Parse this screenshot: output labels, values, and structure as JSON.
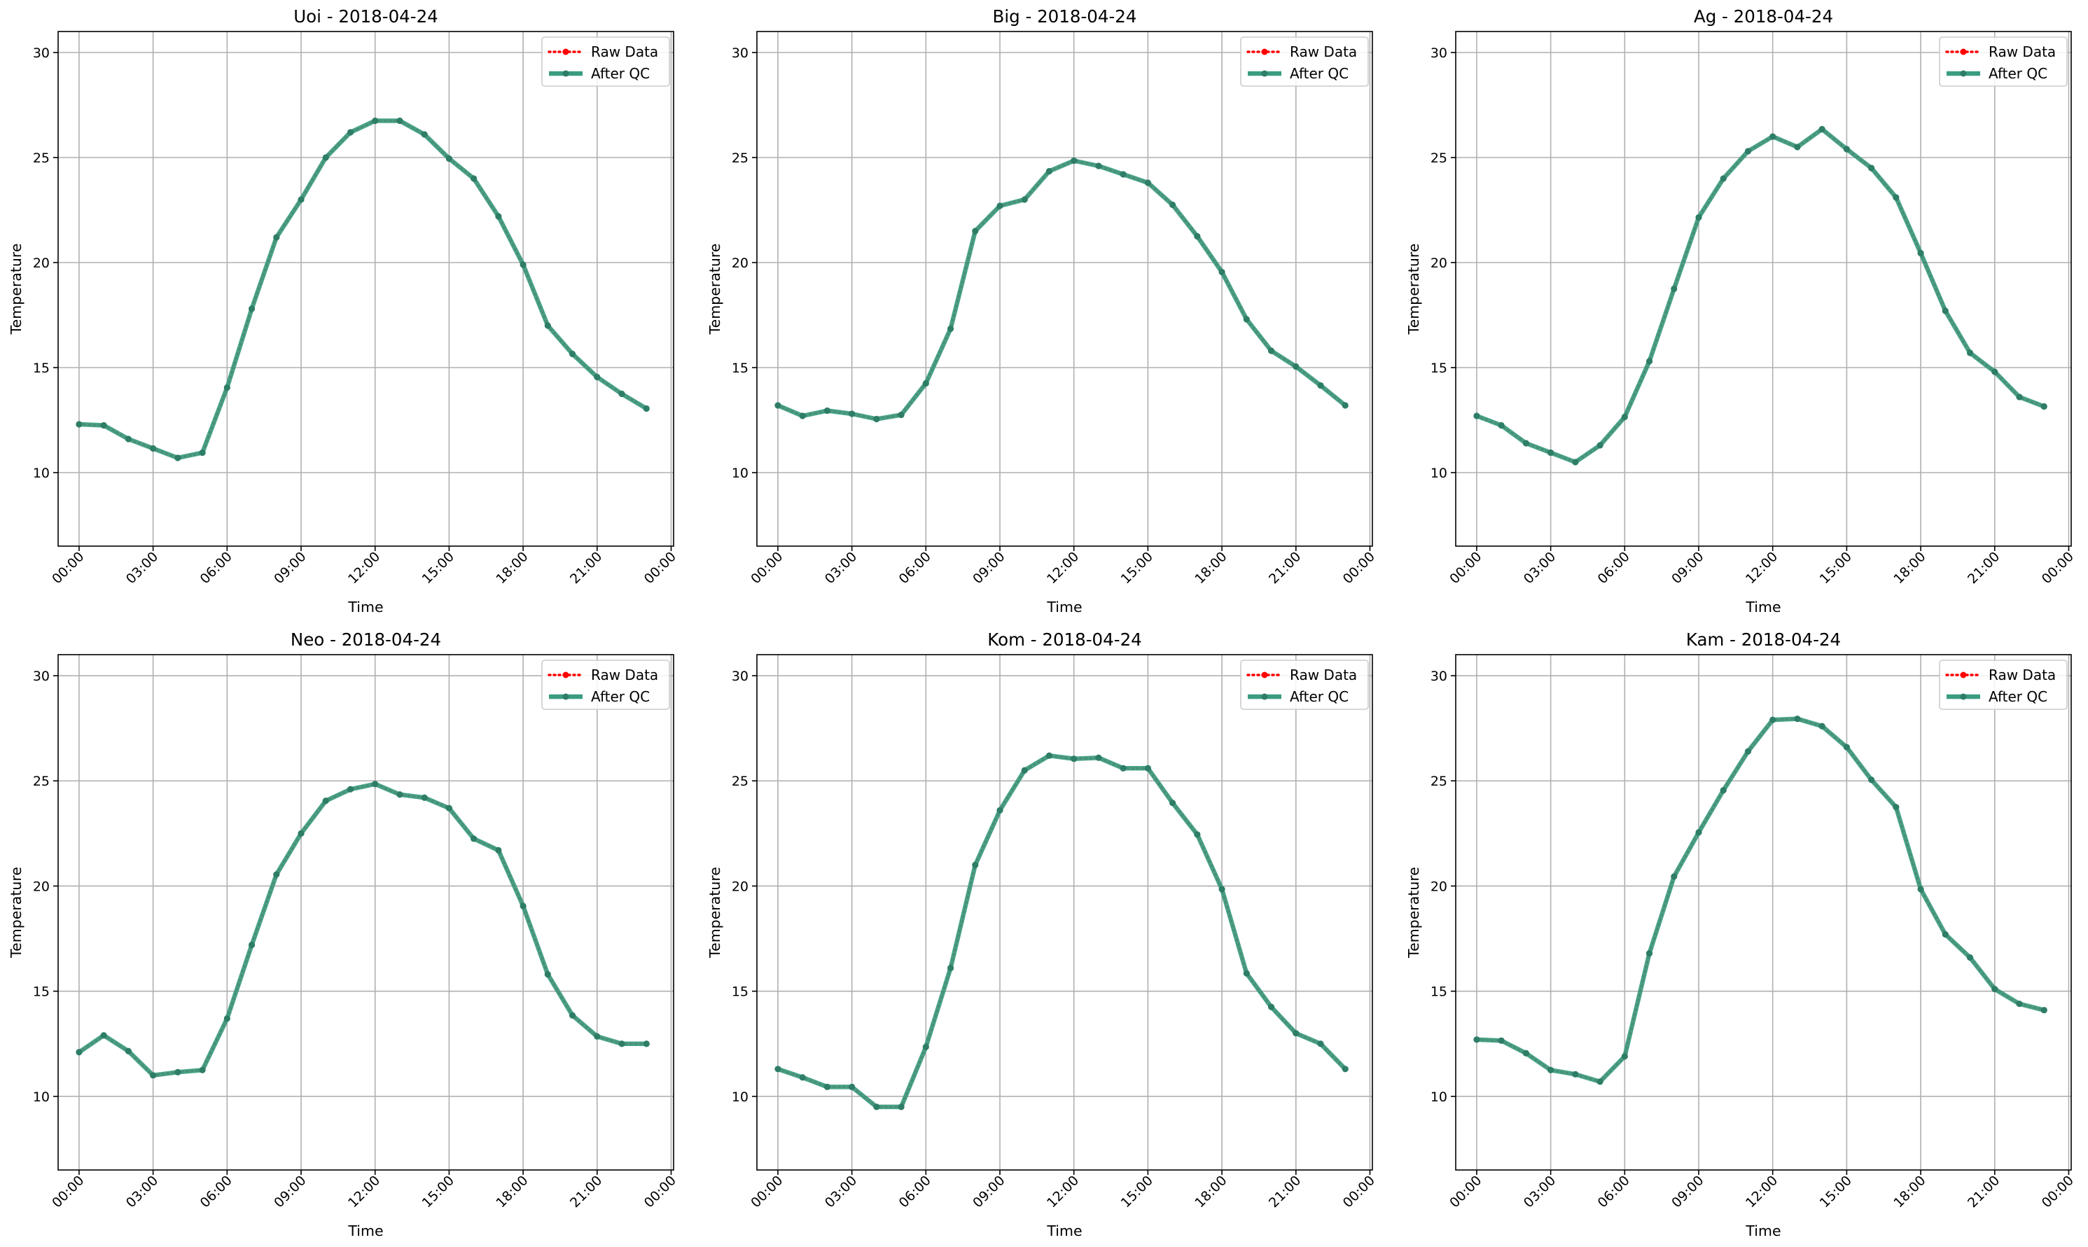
{
  "chart_data": [
    {
      "type": "line",
      "title": "Uoi - 2018-04-24",
      "xlabel": "Time",
      "ylabel": "Temperature",
      "ylim": [
        6.5,
        31
      ],
      "xlim": [
        -0.85,
        24.1
      ],
      "yticks": [
        10,
        15,
        20,
        25,
        30
      ],
      "xticks": [
        [
          "00:00",
          0
        ],
        [
          "03:00",
          3
        ],
        [
          "06:00",
          6
        ],
        [
          "09:00",
          9
        ],
        [
          "12:00",
          12
        ],
        [
          "15:00",
          15
        ],
        [
          "18:00",
          18
        ],
        [
          "21:00",
          21
        ],
        [
          "00:00",
          24
        ]
      ],
      "grid": true,
      "legend_position": "top-right",
      "x": [
        0,
        1,
        2,
        3,
        4,
        5,
        6,
        7,
        8,
        9,
        10,
        11,
        12,
        13,
        14,
        15,
        16,
        17,
        18,
        19,
        20,
        21,
        22,
        23
      ],
      "series": [
        {
          "name": "Raw Data",
          "values": [
            12.3,
            12.25,
            11.6,
            11.15,
            10.7,
            10.95,
            14.05,
            17.8,
            21.2,
            23.0,
            25.0,
            26.2,
            26.75,
            26.75,
            26.1,
            24.95,
            24.0,
            22.2,
            19.9,
            17.0,
            15.65,
            14.55,
            13.75,
            13.05
          ]
        },
        {
          "name": "After QC",
          "values": [
            12.3,
            12.25,
            11.6,
            11.15,
            10.7,
            10.95,
            14.05,
            17.8,
            21.2,
            23.0,
            25.0,
            26.2,
            26.75,
            26.75,
            26.1,
            24.95,
            24.0,
            22.2,
            19.9,
            17.0,
            15.65,
            14.55,
            13.75,
            13.05
          ]
        }
      ]
    },
    {
      "type": "line",
      "title": "Big - 2018-04-24",
      "xlabel": "Time",
      "ylabel": "Temperature",
      "ylim": [
        6.5,
        31
      ],
      "xlim": [
        -0.85,
        24.1
      ],
      "yticks": [
        10,
        15,
        20,
        25,
        30
      ],
      "xticks": [
        [
          "00:00",
          0
        ],
        [
          "03:00",
          3
        ],
        [
          "06:00",
          6
        ],
        [
          "09:00",
          9
        ],
        [
          "12:00",
          12
        ],
        [
          "15:00",
          15
        ],
        [
          "18:00",
          18
        ],
        [
          "21:00",
          21
        ],
        [
          "00:00",
          24
        ]
      ],
      "grid": true,
      "legend_position": "top-right",
      "x": [
        0,
        1,
        2,
        3,
        4,
        5,
        6,
        7,
        8,
        9,
        10,
        11,
        12,
        13,
        14,
        15,
        16,
        17,
        18,
        19,
        20,
        21,
        22,
        23
      ],
      "series": [
        {
          "name": "Raw Data",
          "values": [
            13.2,
            12.7,
            12.95,
            12.8,
            12.55,
            12.75,
            14.25,
            16.85,
            21.5,
            22.7,
            23.0,
            24.35,
            24.85,
            24.6,
            24.2,
            23.8,
            22.75,
            21.25,
            19.55,
            17.3,
            15.8,
            15.05,
            14.15,
            13.2
          ]
        },
        {
          "name": "After QC",
          "values": [
            13.2,
            12.7,
            12.95,
            12.8,
            12.55,
            12.75,
            14.25,
            16.85,
            21.5,
            22.7,
            23.0,
            24.35,
            24.85,
            24.6,
            24.2,
            23.8,
            22.75,
            21.25,
            19.55,
            17.3,
            15.8,
            15.05,
            14.15,
            13.2
          ]
        }
      ]
    },
    {
      "type": "line",
      "title": "Ag - 2018-04-24",
      "xlabel": "Time",
      "ylabel": "Temperature",
      "ylim": [
        6.5,
        31
      ],
      "xlim": [
        -0.85,
        24.1
      ],
      "yticks": [
        10,
        15,
        20,
        25,
        30
      ],
      "xticks": [
        [
          "00:00",
          0
        ],
        [
          "03:00",
          3
        ],
        [
          "06:00",
          6
        ],
        [
          "09:00",
          9
        ],
        [
          "12:00",
          12
        ],
        [
          "15:00",
          15
        ],
        [
          "18:00",
          18
        ],
        [
          "21:00",
          21
        ],
        [
          "00:00",
          24
        ]
      ],
      "grid": true,
      "legend_position": "top-right",
      "x": [
        0,
        1,
        2,
        3,
        4,
        5,
        6,
        7,
        8,
        9,
        10,
        11,
        12,
        13,
        14,
        15,
        16,
        17,
        18,
        19,
        20,
        21,
        22,
        23
      ],
      "series": [
        {
          "name": "Raw Data",
          "values": [
            12.7,
            12.25,
            11.4,
            10.95,
            10.5,
            11.3,
            12.65,
            15.3,
            18.75,
            22.15,
            24.0,
            25.3,
            26.0,
            25.5,
            26.35,
            25.4,
            24.5,
            23.1,
            20.45,
            17.7,
            15.7,
            14.8,
            13.6,
            13.15
          ]
        },
        {
          "name": "After QC",
          "values": [
            12.7,
            12.25,
            11.4,
            10.95,
            10.5,
            11.3,
            12.65,
            15.3,
            18.75,
            22.15,
            24.0,
            25.3,
            26.0,
            25.5,
            26.35,
            25.4,
            24.5,
            23.1,
            20.45,
            17.7,
            15.7,
            14.8,
            13.6,
            13.15
          ]
        }
      ]
    },
    {
      "type": "line",
      "title": "Neo - 2018-04-24",
      "xlabel": "Time",
      "ylabel": "Temperature",
      "ylim": [
        6.5,
        31
      ],
      "xlim": [
        -0.85,
        24.1
      ],
      "yticks": [
        10,
        15,
        20,
        25,
        30
      ],
      "xticks": [
        [
          "00:00",
          0
        ],
        [
          "03:00",
          3
        ],
        [
          "06:00",
          6
        ],
        [
          "09:00",
          9
        ],
        [
          "12:00",
          12
        ],
        [
          "15:00",
          15
        ],
        [
          "18:00",
          18
        ],
        [
          "21:00",
          21
        ],
        [
          "00:00",
          24
        ]
      ],
      "grid": true,
      "legend_position": "top-right",
      "x": [
        0,
        1,
        2,
        3,
        4,
        5,
        6,
        7,
        8,
        9,
        10,
        11,
        12,
        13,
        14,
        15,
        16,
        17,
        18,
        19,
        20,
        21,
        22,
        23
      ],
      "series": [
        {
          "name": "Raw Data",
          "values": [
            12.1,
            12.9,
            12.15,
            11.0,
            11.15,
            11.25,
            13.7,
            17.2,
            20.55,
            22.5,
            24.05,
            24.6,
            24.85,
            24.35,
            24.2,
            23.7,
            22.25,
            21.7,
            19.05,
            15.8,
            13.85,
            12.85,
            12.5,
            12.5
          ]
        },
        {
          "name": "After QC",
          "values": [
            12.1,
            12.9,
            12.15,
            11.0,
            11.15,
            11.25,
            13.7,
            17.2,
            20.55,
            22.5,
            24.05,
            24.6,
            24.85,
            24.35,
            24.2,
            23.7,
            22.25,
            21.7,
            19.05,
            15.8,
            13.85,
            12.85,
            12.5,
            12.5
          ]
        }
      ]
    },
    {
      "type": "line",
      "title": "Kom - 2018-04-24",
      "xlabel": "Time",
      "ylabel": "Temperature",
      "ylim": [
        6.5,
        31
      ],
      "xlim": [
        -0.85,
        24.1
      ],
      "yticks": [
        10,
        15,
        20,
        25,
        30
      ],
      "xticks": [
        [
          "00:00",
          0
        ],
        [
          "03:00",
          3
        ],
        [
          "06:00",
          6
        ],
        [
          "09:00",
          9
        ],
        [
          "12:00",
          12
        ],
        [
          "15:00",
          15
        ],
        [
          "18:00",
          18
        ],
        [
          "21:00",
          21
        ],
        [
          "00:00",
          24
        ]
      ],
      "grid": true,
      "legend_position": "top-right",
      "x": [
        0,
        1,
        2,
        3,
        4,
        5,
        6,
        7,
        8,
        9,
        10,
        11,
        12,
        13,
        14,
        15,
        16,
        17,
        18,
        19,
        20,
        21,
        22,
        23
      ],
      "series": [
        {
          "name": "Raw Data",
          "values": [
            11.3,
            10.9,
            10.45,
            10.45,
            9.5,
            9.5,
            12.35,
            16.1,
            21.0,
            23.6,
            25.5,
            26.2,
            26.05,
            26.1,
            25.6,
            25.6,
            23.95,
            22.45,
            19.85,
            15.85,
            14.25,
            13.0,
            12.5,
            11.3
          ]
        },
        {
          "name": "After QC",
          "values": [
            11.3,
            10.9,
            10.45,
            10.45,
            9.5,
            9.5,
            12.35,
            16.1,
            21.0,
            23.6,
            25.5,
            26.2,
            26.05,
            26.1,
            25.6,
            25.6,
            23.95,
            22.45,
            19.85,
            15.85,
            14.25,
            13.0,
            12.5,
            11.3
          ]
        }
      ]
    },
    {
      "type": "line",
      "title": "Kam - 2018-04-24",
      "xlabel": "Time",
      "ylabel": "Temperature",
      "ylim": [
        6.5,
        31
      ],
      "xlim": [
        -0.85,
        24.1
      ],
      "yticks": [
        10,
        15,
        20,
        25,
        30
      ],
      "xticks": [
        [
          "00:00",
          0
        ],
        [
          "03:00",
          3
        ],
        [
          "06:00",
          6
        ],
        [
          "09:00",
          9
        ],
        [
          "12:00",
          12
        ],
        [
          "15:00",
          15
        ],
        [
          "18:00",
          18
        ],
        [
          "21:00",
          21
        ],
        [
          "00:00",
          24
        ]
      ],
      "grid": true,
      "legend_position": "top-right",
      "x": [
        0,
        1,
        2,
        3,
        4,
        5,
        6,
        7,
        8,
        9,
        10,
        11,
        12,
        13,
        14,
        15,
        16,
        17,
        18,
        19,
        20,
        21,
        22,
        23
      ],
      "series": [
        {
          "name": "Raw Data",
          "values": [
            12.7,
            12.65,
            12.05,
            11.25,
            11.05,
            10.7,
            11.9,
            16.8,
            20.45,
            22.55,
            24.55,
            26.4,
            27.9,
            27.95,
            27.6,
            26.6,
            25.05,
            23.75,
            19.85,
            17.7,
            16.6,
            15.1,
            14.4,
            14.1
          ]
        },
        {
          "name": "After QC",
          "values": [
            12.7,
            12.65,
            12.05,
            11.25,
            11.05,
            10.7,
            11.9,
            16.8,
            20.45,
            22.55,
            24.55,
            26.4,
            27.9,
            27.95,
            27.6,
            26.6,
            25.05,
            23.75,
            19.85,
            17.7,
            16.6,
            15.1,
            14.4,
            14.1
          ]
        }
      ]
    }
  ],
  "colors": {
    "raw": "#ff0000",
    "qc_line": "#3a9c80",
    "qc_marker": "#2e7d67",
    "grid": "#b0b0b0"
  }
}
